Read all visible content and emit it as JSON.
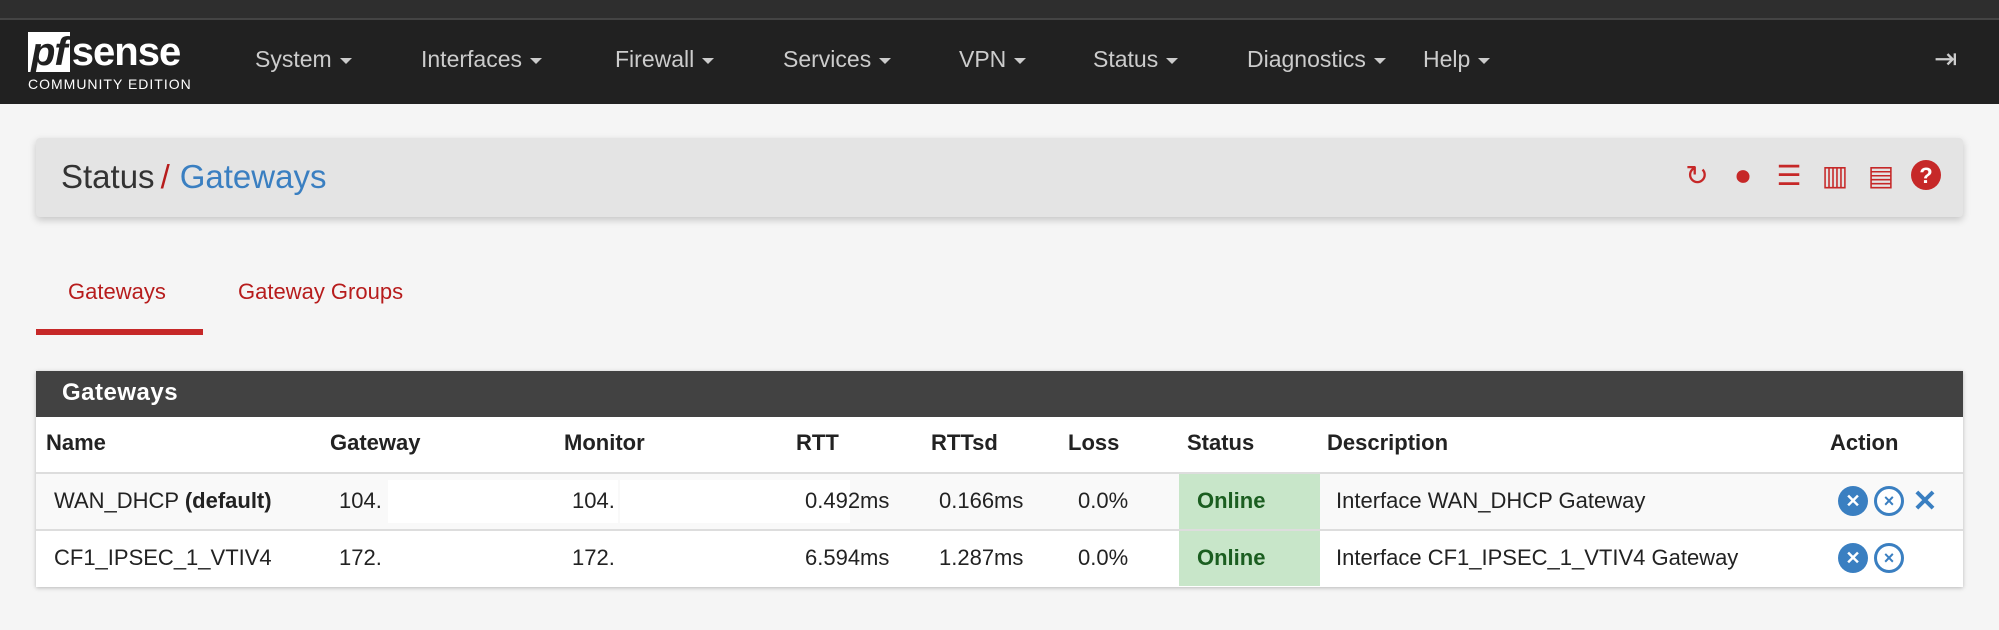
{
  "brand": {
    "name_pf": "pf",
    "name_sense": "sense",
    "edition": "COMMUNITY EDITION"
  },
  "nav": [
    "System",
    "Interfaces",
    "Firewall",
    "Services",
    "VPN",
    "Status",
    "Diagnostics",
    "Help"
  ],
  "breadcrumb": {
    "parent": "Status",
    "separator": "/",
    "current": "Gateways"
  },
  "header_icons": [
    "refresh-icon",
    "stop-circle-icon",
    "sliders-icon",
    "bar-chart-icon",
    "list-icon",
    "help-icon"
  ],
  "tabs": [
    {
      "label": "Gateways",
      "active": true
    },
    {
      "label": "Gateway Groups",
      "active": false
    }
  ],
  "panel": {
    "title": "Gateways",
    "columns": [
      "Name",
      "Gateway",
      "Monitor",
      "RTT",
      "RTTsd",
      "Loss",
      "Status",
      "Description",
      "Action"
    ],
    "rows": [
      {
        "name": "WAN_DHCP",
        "name_suffix": "(default)",
        "gateway": "104.",
        "monitor": "104.",
        "rtt": "0.492ms",
        "rttsd": "0.166ms",
        "loss": "0.0%",
        "status": "Online",
        "description": "Interface WAN_DHCP Gateway",
        "actions": [
          "disable-icon",
          "kill-states-icon",
          "delete-icon"
        ]
      },
      {
        "name": "CF1_IPSEC_1_VTIV4",
        "name_suffix": "",
        "gateway": "172.",
        "monitor": "172.",
        "rtt": "6.594ms",
        "rttsd": "1.287ms",
        "loss": "0.0%",
        "status": "Online",
        "description": "Interface CF1_IPSEC_1_VTIV4 Gateway",
        "actions": [
          "disable-icon",
          "kill-states-icon"
        ]
      }
    ]
  },
  "colors": {
    "navbar": "#212121",
    "accent_red": "#c62828",
    "link_blue": "#3a7fc1",
    "online_bg": "#c8e6c9",
    "online_text": "#1b5e20"
  }
}
